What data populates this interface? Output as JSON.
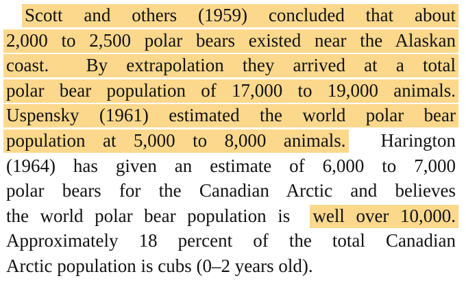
{
  "paragraph": {
    "lines": [
      {
        "segments": [
          {
            "text": "Scott and others (1959) concluded that about",
            "highlight": true
          }
        ]
      },
      {
        "segments": [
          {
            "text": "2,000 to 2,500 polar bears existed near the Alaskan",
            "highlight": true
          }
        ]
      },
      {
        "segments": [
          {
            "text": "coast.  By extrapolation they arrived at a total",
            "highlight": true
          }
        ]
      },
      {
        "segments": [
          {
            "text": "polar bear population of 17,000 to 19,000 animals.",
            "highlight": true
          }
        ]
      },
      {
        "segments": [
          {
            "text": "Uspensky (1961) estimated the world polar bear",
            "highlight": true
          }
        ]
      },
      {
        "segments": [
          {
            "text": "population at 5,000 to 8,000 animals.",
            "highlight": true
          },
          {
            "text": "Harington",
            "highlight": false
          }
        ]
      },
      {
        "segments": [
          {
            "text": "(1964) has given an estimate of 6,000 to 7,000",
            "highlight": false
          }
        ]
      },
      {
        "segments": [
          {
            "text": "polar bears for the Canadian Arctic and believes",
            "highlight": false
          }
        ]
      },
      {
        "segments": [
          {
            "text": "the world polar bear population is",
            "highlight": false
          },
          {
            "text": "well over 10,000.",
            "highlight": true
          }
        ]
      },
      {
        "segments": [
          {
            "text": "Approximately 18 percent of the total Canadian",
            "highlight": false
          }
        ]
      },
      {
        "segments": [
          {
            "text": "Arctic population is cubs (0–2 years old).",
            "highlight": false
          }
        ]
      }
    ]
  }
}
